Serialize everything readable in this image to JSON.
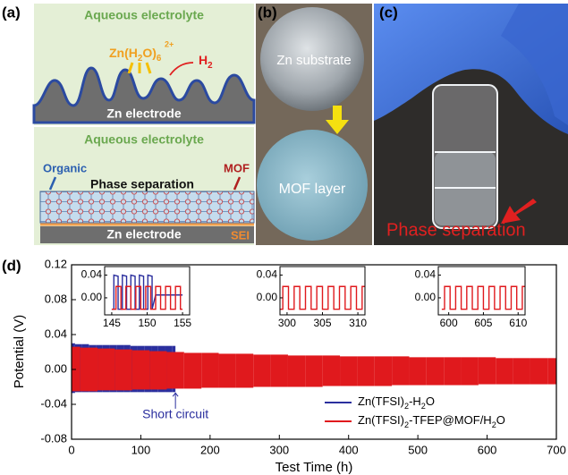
{
  "panel_labels": [
    "(a)",
    "(b)",
    "(c)",
    "(d)"
  ],
  "panel_a": {
    "electrolyte_top": "Aqueous electrolyte",
    "ion": "Zn(H2O)6",
    "ion_charge": "2+",
    "gas": "H2",
    "electrode_top": "Zn electrode",
    "electrolyte_bottom": "Aqueous electrolyte",
    "organic": "Organic",
    "phase_separation": "Phase separation",
    "mof": "MOF",
    "electrode_bottom": "Zn electrode",
    "sei": "SEI"
  },
  "panel_b": {
    "top_label": "Zn substrate",
    "bottom_label": "MOF layer"
  },
  "panel_c": {
    "label": "Phase separation"
  },
  "chart_data": {
    "type": "band",
    "xlabel": "Test Time (h)",
    "ylabel": "Potential (V)",
    "xlim": [
      0,
      700
    ],
    "xticks": [
      0,
      100,
      200,
      300,
      400,
      500,
      600,
      700
    ],
    "ylim": [
      -0.08,
      0.12
    ],
    "yticks": [
      -0.08,
      -0.04,
      {
        "value": 0,
        "label": "0.00"
      },
      0.04,
      0.08,
      0.12
    ],
    "legend": "lower right",
    "annotation": "Short circuit",
    "series": [
      {
        "name": "Zn(TFSI)2-H2O",
        "color": "#2b2f9e",
        "x": [
          0,
          10,
          20,
          30,
          40,
          50,
          60,
          70,
          80,
          90,
          100,
          110,
          120,
          130,
          140,
          150
        ],
        "upper": [
          0.03,
          0.029,
          0.029,
          0.028,
          0.028,
          0.028,
          0.028,
          0.028,
          0.028,
          0.027,
          0.027,
          0.027,
          0.027,
          0.027,
          0.027,
          0.027
        ],
        "lower": [
          -0.027,
          -0.026,
          -0.026,
          -0.026,
          -0.026,
          -0.026,
          -0.026,
          -0.026,
          -0.026,
          -0.026,
          -0.026,
          -0.026,
          -0.026,
          -0.026,
          -0.026,
          -0.026
        ]
      },
      {
        "name": "Zn(TFSI)2-TFEP@MOF/H2O",
        "color": "#e0191d",
        "x": [
          0,
          25,
          50,
          75,
          100,
          125,
          150,
          175,
          200,
          225,
          250,
          275,
          300,
          325,
          350,
          375,
          400,
          425,
          450,
          475,
          500,
          525,
          550,
          575,
          600,
          625,
          650,
          675,
          700
        ],
        "upper": [
          0.026,
          0.025,
          0.024,
          0.023,
          0.022,
          0.021,
          0.02,
          0.019,
          0.019,
          0.018,
          0.018,
          0.017,
          0.017,
          0.016,
          0.016,
          0.016,
          0.015,
          0.015,
          0.015,
          0.015,
          0.014,
          0.014,
          0.014,
          0.014,
          0.014,
          0.013,
          0.013,
          0.013,
          0.013
        ],
        "lower": [
          -0.025,
          -0.025,
          -0.024,
          -0.024,
          -0.023,
          -0.023,
          -0.022,
          -0.022,
          -0.021,
          -0.021,
          -0.021,
          -0.02,
          -0.02,
          -0.02,
          -0.02,
          -0.019,
          -0.019,
          -0.019,
          -0.019,
          -0.018,
          -0.018,
          -0.018,
          -0.018,
          -0.018,
          -0.017,
          -0.017,
          -0.017,
          -0.017,
          -0.017
        ]
      }
    ],
    "insets": [
      {
        "xlim": [
          144,
          156
        ],
        "xticks": [
          145,
          150,
          155
        ],
        "ylim": [
          -0.03,
          0.055
        ],
        "yticks": [
          {
            "value": 0,
            "label": "0.00"
          },
          0.04
        ],
        "series": [
          {
            "color": "#2b2f9e",
            "x": [
              145,
              145.3,
              145.3,
              145.9,
              145.9,
              146.5,
              146.5,
              147.1,
              147.1,
              147.7,
              147.7,
              148.3,
              148.3,
              148.9,
              148.9,
              149.5,
              149.5,
              150.1,
              150.1,
              150.7,
              150.7,
              151.2,
              155
            ],
            "values": [
              -0.02,
              -0.02,
              0.04,
              0.038,
              -0.02,
              -0.02,
              0.04,
              0.038,
              -0.02,
              -0.02,
              0.04,
              0.038,
              -0.02,
              -0.02,
              0.04,
              0.038,
              -0.02,
              -0.02,
              0.04,
              0.038,
              -0.02,
              0.005,
              0.005
            ]
          },
          {
            "color": "#e0191d",
            "x": [
              145,
              145.6,
              145.6,
              146.3,
              146.3,
              147,
              147,
              147.7,
              147.7,
              148.4,
              148.4,
              149.1,
              149.1,
              149.8,
              149.8,
              150.5,
              150.5,
              151.2,
              151.2,
              151.9,
              151.9,
              152.6,
              152.6,
              153.3,
              153.3,
              154,
              154,
              154.7,
              154.7,
              155
            ],
            "values": [
              -0.02,
              -0.02,
              0.02,
              0.02,
              -0.02,
              -0.02,
              0.02,
              0.02,
              -0.02,
              -0.02,
              0.02,
              0.02,
              -0.02,
              -0.02,
              0.02,
              0.02,
              -0.02,
              -0.02,
              0.02,
              0.02,
              -0.02,
              -0.02,
              0.02,
              0.02,
              -0.02,
              -0.02,
              0.02,
              0.02,
              -0.02,
              -0.02
            ]
          }
        ]
      },
      {
        "xlim": [
          299,
          311
        ],
        "xticks": [
          300,
          305,
          310
        ],
        "ylim": [
          -0.03,
          0.055
        ],
        "yticks": [
          {
            "value": 0,
            "label": "0.00"
          },
          0.04
        ],
        "series": [
          {
            "color": "#e0191d",
            "x": [
              299,
              299.4,
              299.4,
              300.2,
              300.2,
              301,
              301,
              301.8,
              301.8,
              302.6,
              302.6,
              303.4,
              303.4,
              304.2,
              304.2,
              305,
              305,
              305.8,
              305.8,
              306.6,
              306.6,
              307.4,
              307.4,
              308.2,
              308.2,
              309,
              309,
              309.8,
              309.8,
              310.6,
              310.6,
              311
            ],
            "values": [
              -0.02,
              -0.02,
              0.02,
              0.02,
              -0.02,
              -0.02,
              0.02,
              0.02,
              -0.02,
              -0.02,
              0.02,
              0.02,
              -0.02,
              -0.02,
              0.02,
              0.02,
              -0.02,
              -0.02,
              0.02,
              0.02,
              -0.02,
              -0.02,
              0.02,
              0.02,
              -0.02,
              -0.02,
              0.02,
              0.02,
              -0.02,
              -0.02,
              0.02,
              0.02
            ]
          }
        ]
      },
      {
        "xlim": [
          598.5,
          611
        ],
        "xticks": [
          600,
          605,
          610
        ],
        "ylim": [
          -0.03,
          0.055
        ],
        "yticks": [
          {
            "value": 0,
            "label": "0.00"
          },
          0.04
        ],
        "series": [
          {
            "color": "#e0191d",
            "x": [
              599,
              599.4,
              599.4,
              600.2,
              600.2,
              601,
              601,
              601.8,
              601.8,
              602.6,
              602.6,
              603.4,
              603.4,
              604.2,
              604.2,
              605,
              605,
              605.8,
              605.8,
              606.6,
              606.6,
              607.4,
              607.4,
              608.2,
              608.2,
              609,
              609,
              609.8,
              609.8,
              610.6,
              610.6,
              611
            ],
            "values": [
              -0.02,
              -0.02,
              0.02,
              0.02,
              -0.02,
              -0.02,
              0.02,
              0.02,
              -0.02,
              -0.02,
              0.02,
              0.02,
              -0.02,
              -0.02,
              0.02,
              0.02,
              -0.02,
              -0.02,
              0.02,
              0.02,
              -0.02,
              -0.02,
              0.02,
              0.02,
              -0.02,
              -0.02,
              0.02,
              0.02,
              -0.02,
              -0.02,
              0.02,
              0.02
            ]
          }
        ]
      }
    ]
  }
}
